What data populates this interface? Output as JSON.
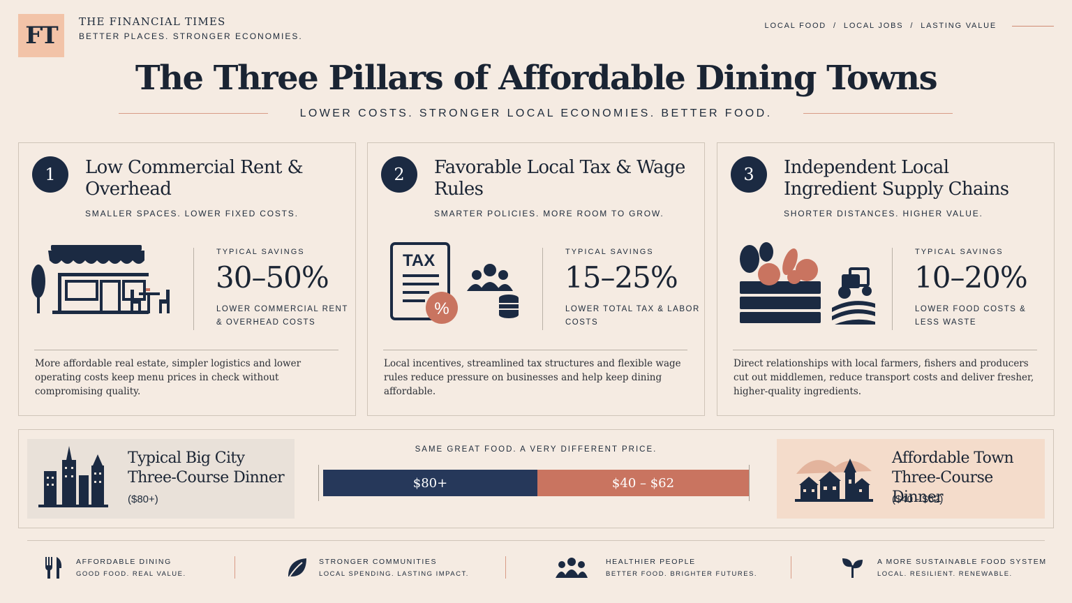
{
  "brand": {
    "logo": "FT",
    "name": "THE FINANCIAL TIMES",
    "tagline": "BETTER PLACES. STRONGER ECONOMIES."
  },
  "topnav": [
    "LOCAL FOOD",
    "LOCAL JOBS",
    "LASTING VALUE"
  ],
  "topnav_separator": "/",
  "title": "The Three Pillars of Affordable Dining Towns",
  "subtitle": "LOWER COSTS. STRONGER LOCAL ECONOMIES. BETTER FOOD.",
  "pillars": [
    {
      "number": "1",
      "title": "Low Commercial Rent & Overhead",
      "subtitle": "SMALLER SPACES. LOWER FIXED COSTS.",
      "savings_label": "TYPICAL SAVINGS",
      "savings_value": "30–50%",
      "savings_desc": "LOWER COMMERCIAL RENT & OVERHEAD COSTS",
      "description": "More affordable real estate, simpler logistics and lower operating costs keep menu prices in check without compromising quality.",
      "icon": "storefront-icon"
    },
    {
      "number": "2",
      "title": "Favorable Local Tax & Wage Rules",
      "subtitle": "SMARTER POLICIES. MORE ROOM TO GROW.",
      "savings_label": "TYPICAL SAVINGS",
      "savings_value": "15–25%",
      "savings_desc": "LOWER TOTAL TAX & LABOR COSTS",
      "description": "Local incentives, streamlined tax structures and flexible wage rules reduce pressure on businesses and help keep dining affordable.",
      "icon": "tax-document-icon",
      "icon_text": "TAX",
      "icon_badge": "%"
    },
    {
      "number": "3",
      "title": "Independent Local Ingredient Supply Chains",
      "subtitle": "SHORTER DISTANCES. HIGHER VALUE.",
      "savings_label": "TYPICAL SAVINGS",
      "savings_value": "10–20%",
      "savings_desc": "LOWER FOOD COSTS & LESS WASTE",
      "description": "Direct relationships with local farmers, fishers and producers cut out middlemen, reduce transport costs and deliver fresher, higher-quality ingredients.",
      "icon": "produce-crate-icon"
    }
  ],
  "comparison": {
    "caption": "SAME GREAT FOOD. A VERY DIFFERENT PRICE.",
    "big_city": {
      "title": "Typical Big City Three-Course Dinner",
      "price": "($80+)",
      "bar_label": "$80+",
      "icon": "skyline-icon"
    },
    "town": {
      "title": "Affordable Town Three-Course Dinner",
      "price": "($40 - $62)",
      "bar_label": "$40 – $62",
      "icon": "village-icon"
    }
  },
  "footer": [
    {
      "title": "AFFORDABLE DINING",
      "subtitle": "GOOD FOOD. REAL VALUE.",
      "icon": "fork-knife-icon"
    },
    {
      "title": "STRONGER COMMUNITIES",
      "subtitle": "LOCAL SPENDING. LASTING IMPACT.",
      "icon": "leaf-icon"
    },
    {
      "title": "HEALTHIER PEOPLE",
      "subtitle": "BETTER FOOD. BRIGHTER FUTURES.",
      "icon": "people-icon"
    },
    {
      "title": "A MORE SUSTAINABLE FOOD SYSTEM",
      "subtitle": "LOCAL. RESILIENT. RENEWABLE.",
      "icon": "sprout-icon"
    }
  ],
  "colors": {
    "navy": "#1b2a42",
    "terracotta": "#c97460",
    "background": "#f5ebe2",
    "peach": "#f2c3a8"
  }
}
